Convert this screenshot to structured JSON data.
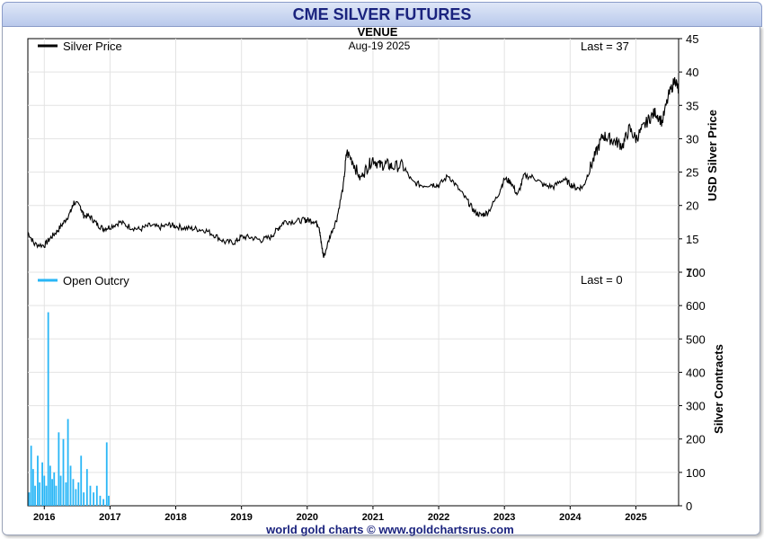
{
  "header": {
    "title": "CME SILVER FUTURES",
    "subtitle": "VENUE",
    "date": "Aug-19  2025",
    "footer": "world gold charts © www.goldchartsrus.com"
  },
  "colors": {
    "title_text": "#1a237e",
    "price_line": "#000000",
    "outcry_bars": "#29b6f6",
    "grid": "#e3e3e3",
    "footer_text": "#1a237e"
  },
  "chart_data": [
    {
      "type": "line",
      "title": "",
      "legend": [
        {
          "name": "Silver Price",
          "color": "#000000"
        }
      ],
      "last_label": "Last = 37",
      "ylabel": "USD Silver Price",
      "ylim": [
        10,
        45
      ],
      "yticks": [
        10,
        15,
        20,
        25,
        30,
        35,
        40,
        45
      ],
      "xlim": [
        2015.75,
        2025.65
      ],
      "grid": true,
      "series": [
        {
          "name": "Silver Price",
          "x": [
            2015.75,
            2015.85,
            2016.0,
            2016.1,
            2016.2,
            2016.3,
            2016.4,
            2016.45,
            2016.55,
            2016.6,
            2016.7,
            2016.8,
            2016.9,
            2017.0,
            2017.15,
            2017.3,
            2017.45,
            2017.6,
            2017.75,
            2017.9,
            2018.0,
            2018.15,
            2018.3,
            2018.45,
            2018.6,
            2018.75,
            2018.9,
            2019.0,
            2019.15,
            2019.3,
            2019.45,
            2019.55,
            2019.65,
            2019.8,
            2019.95,
            2020.0,
            2020.1,
            2020.18,
            2020.2,
            2020.25,
            2020.35,
            2020.45,
            2020.55,
            2020.6,
            2020.7,
            2020.8,
            2020.9,
            2021.0,
            2021.1,
            2021.2,
            2021.3,
            2021.45,
            2021.6,
            2021.75,
            2021.9,
            2022.0,
            2022.15,
            2022.3,
            2022.45,
            2022.55,
            2022.65,
            2022.75,
            2022.9,
            2023.0,
            2023.1,
            2023.2,
            2023.3,
            2023.45,
            2023.6,
            2023.75,
            2023.9,
            2024.0,
            2024.1,
            2024.2,
            2024.3,
            2024.4,
            2024.5,
            2024.6,
            2024.7,
            2024.8,
            2024.9,
            2025.0,
            2025.1,
            2025.2,
            2025.3,
            2025.4,
            2025.5,
            2025.6,
            2025.65
          ],
          "y": [
            16.0,
            14.2,
            14.0,
            15.2,
            16.2,
            17.5,
            19.0,
            20.5,
            19.8,
            18.5,
            18.3,
            17.2,
            16.5,
            16.8,
            17.5,
            16.8,
            16.4,
            17.0,
            16.7,
            17.1,
            16.9,
            16.6,
            16.5,
            16.3,
            15.5,
            14.5,
            14.5,
            15.3,
            15.2,
            14.8,
            15.3,
            16.5,
            17.6,
            17.6,
            17.8,
            17.8,
            17.7,
            17.0,
            15.2,
            12.2,
            15.5,
            18.0,
            23.0,
            28.0,
            26.5,
            24.0,
            25.5,
            27.0,
            26.0,
            26.2,
            25.8,
            26.0,
            23.5,
            23.0,
            23.2,
            23.0,
            24.5,
            22.5,
            20.5,
            19.0,
            18.5,
            19.0,
            21.5,
            24.0,
            23.5,
            21.5,
            24.5,
            24.2,
            23.0,
            22.8,
            24.0,
            23.2,
            22.6,
            22.8,
            25.5,
            28.0,
            30.5,
            30.0,
            29.5,
            29.0,
            31.5,
            30.0,
            31.5,
            33.0,
            34.0,
            32.5,
            36.5,
            39.0,
            37.0
          ]
        }
      ]
    },
    {
      "type": "bar",
      "title": "",
      "legend": [
        {
          "name": "Open Outcry",
          "color": "#29b6f6"
        }
      ],
      "last_label": "Last = 0",
      "ylabel": "Silver Contracts",
      "ylim": [
        0,
        700
      ],
      "yticks": [
        0,
        100,
        200,
        300,
        400,
        500,
        600,
        700
      ],
      "xlim": [
        2015.75,
        2025.65
      ],
      "grid": true,
      "series": [
        {
          "name": "Open Outcry",
          "x": [
            2015.77,
            2015.8,
            2015.83,
            2015.86,
            2015.9,
            2015.93,
            2015.97,
            2016.0,
            2016.03,
            2016.06,
            2016.09,
            2016.12,
            2016.15,
            2016.18,
            2016.22,
            2016.25,
            2016.29,
            2016.33,
            2016.36,
            2016.4,
            2016.44,
            2016.48,
            2016.52,
            2016.56,
            2016.6,
            2016.65,
            2016.7,
            2016.75,
            2016.8,
            2016.85,
            2016.9,
            2016.95,
            2016.98
          ],
          "y": [
            40,
            180,
            110,
            60,
            150,
            70,
            130,
            90,
            60,
            580,
            120,
            80,
            100,
            60,
            220,
            90,
            200,
            70,
            260,
            120,
            80,
            50,
            70,
            150,
            40,
            110,
            60,
            40,
            60,
            30,
            20,
            190,
            30
          ]
        }
      ]
    }
  ],
  "x_axis": {
    "tick_labels": [
      "2016",
      "2017",
      "2018",
      "2019",
      "2020",
      "2021",
      "2022",
      "2023",
      "2024",
      "2025"
    ],
    "tick_values": [
      2016,
      2017,
      2018,
      2019,
      2020,
      2021,
      2022,
      2023,
      2024,
      2025
    ]
  }
}
